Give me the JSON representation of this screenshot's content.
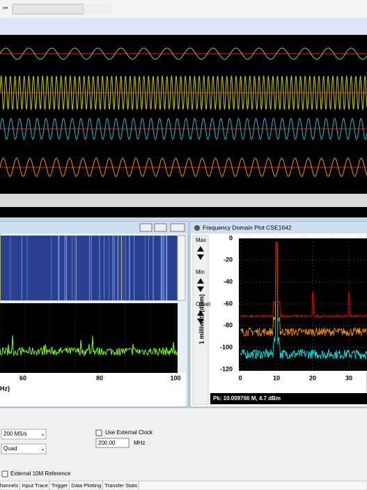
{
  "spectrum_window": {
    "title": "Frequency Domain Plot CSE1642",
    "controls": [
      "Max",
      "Min",
      "Offset"
    ],
    "y_label": "1 milliwatt (dBm)",
    "yticks": [
      0,
      -20,
      -40,
      -60,
      -80,
      -100,
      -120
    ],
    "xticks": [
      0,
      10,
      20,
      30
    ],
    "status": "Pk: 10.009766 M, 4.7 dBm"
  },
  "left_window": {
    "xticks": [
      60,
      80,
      100
    ],
    "x_label": "Hz)"
  },
  "settings": {
    "sample_rate": "200 MS/s",
    "mode": "Quad",
    "external_clock": "Use External Clock",
    "clock_value": "200.00",
    "clock_unit": "MHz",
    "external_reference": "External 10M Reference"
  },
  "tabs": [
    "hannels",
    "Input Trace",
    "Trigger",
    "Data Plotting",
    "Transfer Stats"
  ]
}
